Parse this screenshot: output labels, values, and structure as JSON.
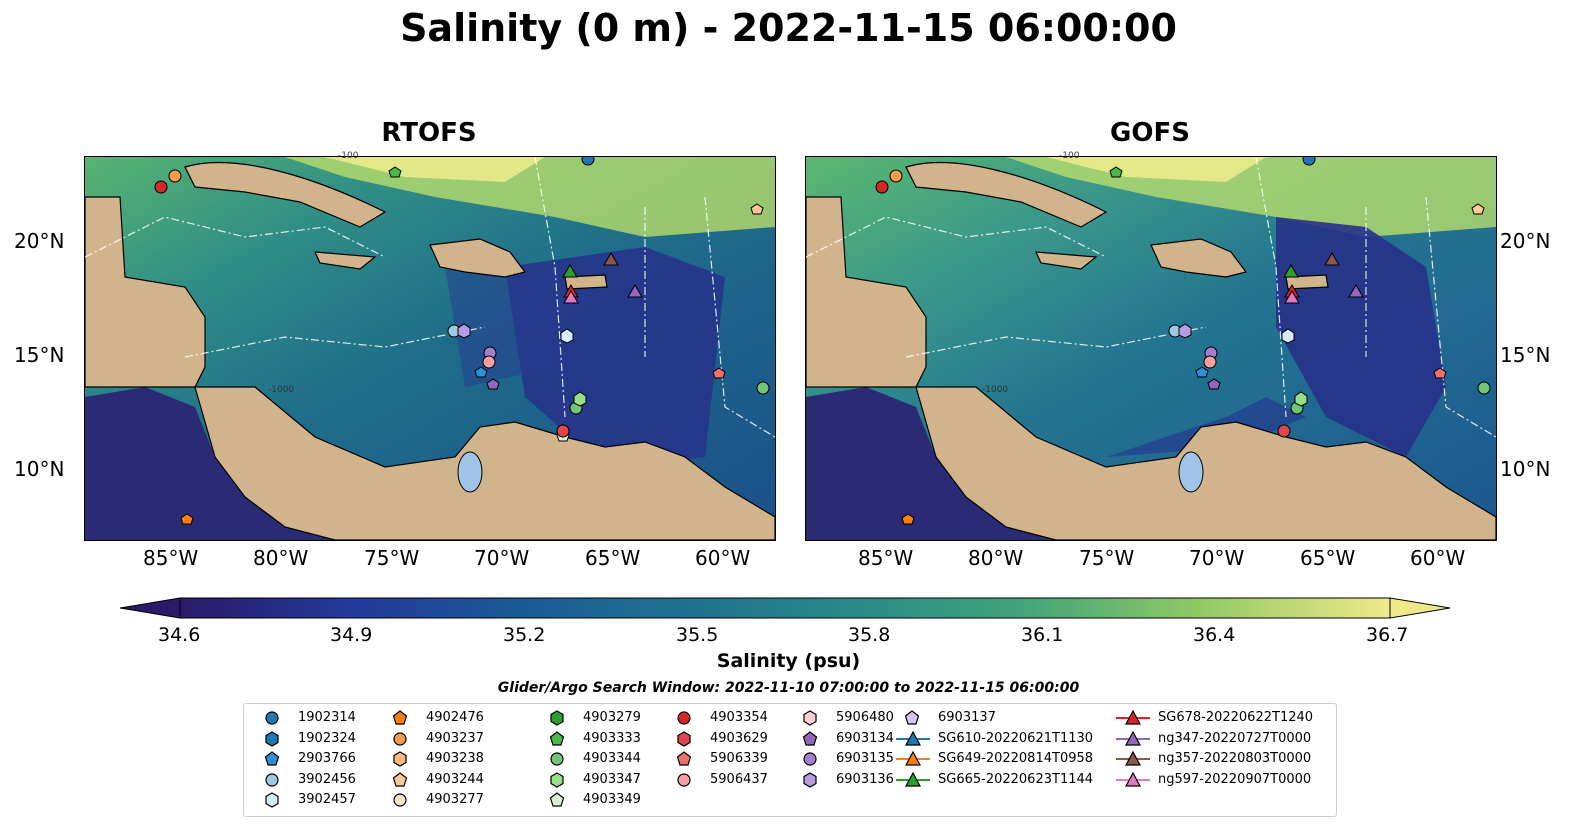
{
  "title": "Salinity (0 m) - 2022-11-15 06:00:00",
  "panels": [
    {
      "title": "RTOFS"
    },
    {
      "title": "GOFS"
    }
  ],
  "longitude_ticks": [
    "85°W",
    "80°W",
    "75°W",
    "70°W",
    "65°W",
    "60°W"
  ],
  "latitude_ticks": [
    "20°N",
    "15°N",
    "10°N"
  ],
  "colorbar": {
    "label": "Salinity (psu)",
    "ticks": [
      "34.6",
      "34.9",
      "35.2",
      "35.5",
      "35.8",
      "36.1",
      "36.4",
      "36.7"
    ],
    "range": [
      34.6,
      36.7
    ],
    "colormap": "haline",
    "extend": "both"
  },
  "search_window": "Glider/Argo Search Window: 2022-11-10 07:00:00 to 2022-11-15 06:00:00",
  "contour_labels": [
    "-100",
    "-1000"
  ],
  "colors": {
    "land": "#d2b48c",
    "lakes": "#a0c4e8",
    "rivers": "#9fb8d6"
  },
  "legend": [
    {
      "label": "1902314",
      "marker": "circle",
      "color": "#1f77b4"
    },
    {
      "label": "1902324",
      "marker": "hexagon",
      "color": "#1f77b4"
    },
    {
      "label": "2903766",
      "marker": "pentagon",
      "color": "#2e8fd8"
    },
    {
      "label": "3902456",
      "marker": "circle",
      "color": "#9ecae1"
    },
    {
      "label": "3902457",
      "marker": "hexagon",
      "color": "#d6ecf8"
    },
    {
      "label": "4902476",
      "marker": "pentagon",
      "color": "#ff7f0e"
    },
    {
      "label": "4903237",
      "marker": "circle",
      "color": "#f39c4e"
    },
    {
      "label": "4903238",
      "marker": "hexagon",
      "color": "#fdbb84"
    },
    {
      "label": "4903244",
      "marker": "pentagon",
      "color": "#fdc997"
    },
    {
      "label": "4903277",
      "marker": "circle",
      "color": "#fee3c8"
    },
    {
      "label": "4903279",
      "marker": "hexagon",
      "color": "#2ca02c"
    },
    {
      "label": "4903333",
      "marker": "pentagon",
      "color": "#4cb84c"
    },
    {
      "label": "4903344",
      "marker": "circle",
      "color": "#74c476"
    },
    {
      "label": "4903347",
      "marker": "hexagon",
      "color": "#98df8a"
    },
    {
      "label": "4903349",
      "marker": "pentagon",
      "color": "#d4f4cc"
    },
    {
      "label": "4903354",
      "marker": "circle",
      "color": "#d62728"
    },
    {
      "label": "4903629",
      "marker": "hexagon",
      "color": "#e0474c"
    },
    {
      "label": "5906339",
      "marker": "pentagon",
      "color": "#f07070"
    },
    {
      "label": "5906437",
      "marker": "circle",
      "color": "#f4a0a0"
    },
    {
      "label": "5906480",
      "marker": "hexagon",
      "color": "#fcd0d0"
    },
    {
      "label": "6903134",
      "marker": "pentagon",
      "color": "#9467bd"
    },
    {
      "label": "6903135",
      "marker": "circle",
      "color": "#a27fcf"
    },
    {
      "label": "6903136",
      "marker": "hexagon",
      "color": "#b79de0"
    },
    {
      "label": "6903137",
      "marker": "pentagon",
      "color": "#d8c4f0"
    },
    {
      "label": "SG610-20220621T1130",
      "marker": "triangle-line",
      "color": "#1f77b4"
    },
    {
      "label": "SG649-20220814T0958",
      "marker": "triangle-line",
      "color": "#ff7f0e"
    },
    {
      "label": "SG665-20220623T1144",
      "marker": "triangle-line",
      "color": "#2ca02c"
    },
    {
      "label": "SG678-20220622T1240",
      "marker": "triangle-line",
      "color": "#d62728"
    },
    {
      "label": "ng347-20220727T0000",
      "marker": "triangle-line",
      "color": "#9467bd"
    },
    {
      "label": "ng357-20220803T0000",
      "marker": "triangle-line",
      "color": "#8c564b"
    },
    {
      "label": "ng597-20220907T0000",
      "marker": "triangle-line",
      "color": "#e377c2"
    }
  ]
}
